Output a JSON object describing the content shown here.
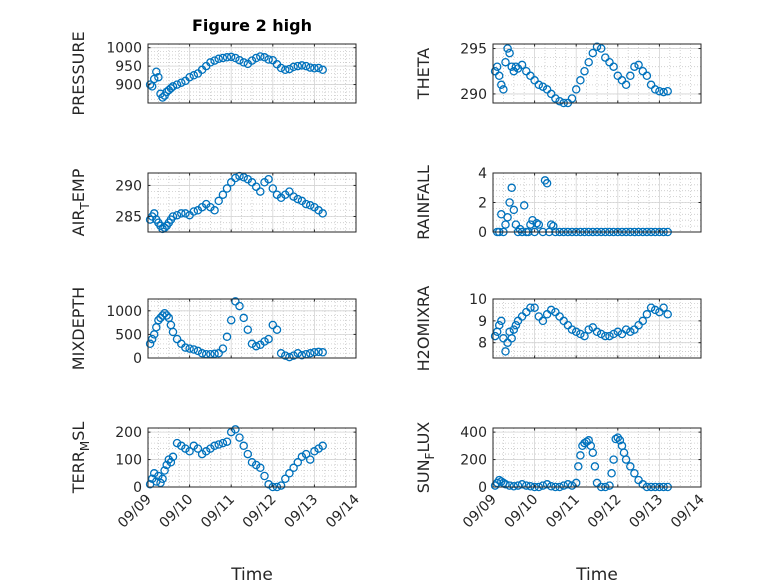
{
  "figure": {
    "title": "Figure 2 high",
    "marker_color": "#0072BD",
    "x_tick_labels": [
      "09/09",
      "09/10",
      "09/11",
      "09/12",
      "09/13",
      "09/14"
    ],
    "x_label": "Time"
  },
  "chart_data": [
    {
      "type": "scatter",
      "ylabel": "PRESSURE",
      "title": "Figure 2 high",
      "xlabel": "",
      "xlim": [
        0,
        5
      ],
      "ylim": [
        850,
        1010
      ],
      "yticks": [
        900,
        950,
        1000
      ],
      "grid": true,
      "minor_grid": true,
      "x": [
        0.05,
        0.1,
        0.15,
        0.2,
        0.25,
        0.3,
        0.35,
        0.4,
        0.45,
        0.5,
        0.55,
        0.6,
        0.7,
        0.8,
        0.9,
        1.0,
        1.1,
        1.2,
        1.3,
        1.4,
        1.5,
        1.6,
        1.7,
        1.8,
        1.9,
        2.0,
        2.1,
        2.2,
        2.3,
        2.4,
        2.5,
        2.6,
        2.7,
        2.8,
        2.9,
        3.0,
        3.1,
        3.2,
        3.3,
        3.4,
        3.5,
        3.6,
        3.7,
        3.8,
        3.9,
        4.0,
        4.1,
        4.2
      ],
      "y": [
        900,
        895,
        915,
        935,
        920,
        875,
        865,
        870,
        880,
        885,
        890,
        895,
        900,
        905,
        910,
        920,
        925,
        930,
        940,
        950,
        960,
        965,
        970,
        972,
        974,
        975,
        972,
        966,
        960,
        956,
        965,
        972,
        976,
        974,
        968,
        966,
        955,
        945,
        940,
        942,
        948,
        950,
        952,
        950,
        946,
        944,
        945,
        940
      ]
    },
    {
      "type": "scatter",
      "ylabel": "THETA",
      "xlabel": "",
      "xlim": [
        0,
        5
      ],
      "ylim": [
        289,
        295.5
      ],
      "yticks": [
        290,
        295
      ],
      "grid": true,
      "minor_grid": true,
      "x": [
        0.05,
        0.1,
        0.15,
        0.2,
        0.25,
        0.3,
        0.35,
        0.4,
        0.45,
        0.5,
        0.55,
        0.6,
        0.7,
        0.8,
        0.9,
        1.0,
        1.1,
        1.2,
        1.3,
        1.4,
        1.5,
        1.6,
        1.7,
        1.8,
        1.9,
        2.0,
        2.1,
        2.2,
        2.3,
        2.4,
        2.5,
        2.6,
        2.7,
        2.8,
        2.9,
        3.0,
        3.1,
        3.2,
        3.3,
        3.4,
        3.5,
        3.6,
        3.7,
        3.8,
        3.9,
        4.0,
        4.1,
        4.2
      ],
      "y": [
        292.5,
        293.0,
        292.0,
        291.0,
        290.5,
        293.5,
        295.0,
        294.5,
        293.0,
        292.5,
        293.0,
        292.8,
        293.2,
        292.5,
        292.0,
        291.5,
        291.0,
        290.8,
        290.5,
        290.0,
        289.5,
        289.2,
        289.0,
        289.0,
        289.5,
        290.5,
        291.5,
        292.5,
        293.5,
        294.5,
        295.2,
        295.0,
        294.0,
        293.5,
        293.0,
        292.0,
        291.5,
        291.0,
        292.0,
        293.0,
        293.2,
        292.5,
        292.0,
        291.0,
        290.5,
        290.3,
        290.2,
        290.3
      ]
    },
    {
      "type": "scatter",
      "ylabel": "AIR_TEMP",
      "xlabel": "",
      "xlim": [
        0,
        5
      ],
      "ylim": [
        282.5,
        292
      ],
      "yticks": [
        285,
        290
      ],
      "grid": true,
      "minor_grid": true,
      "x": [
        0.05,
        0.1,
        0.15,
        0.2,
        0.25,
        0.3,
        0.35,
        0.4,
        0.45,
        0.5,
        0.55,
        0.6,
        0.7,
        0.8,
        0.9,
        1.0,
        1.1,
        1.2,
        1.3,
        1.4,
        1.5,
        1.6,
        1.7,
        1.8,
        1.9,
        2.0,
        2.1,
        2.2,
        2.3,
        2.4,
        2.5,
        2.6,
        2.7,
        2.8,
        2.9,
        3.0,
        3.1,
        3.2,
        3.3,
        3.4,
        3.5,
        3.6,
        3.7,
        3.8,
        3.9,
        4.0,
        4.1,
        4.2
      ],
      "y": [
        284.5,
        285.0,
        285.5,
        284.5,
        284.0,
        283.5,
        283.0,
        283.2,
        283.5,
        284.0,
        284.5,
        285.0,
        285.2,
        285.5,
        285.5,
        285.2,
        285.8,
        286.0,
        286.5,
        287.0,
        286.5,
        286.0,
        287.5,
        288.5,
        289.5,
        290.5,
        291.2,
        291.5,
        291.3,
        291.0,
        290.5,
        289.8,
        289.0,
        290.5,
        291.0,
        289.5,
        288.5,
        288.0,
        288.5,
        289.0,
        288.2,
        287.8,
        287.5,
        287.0,
        286.8,
        286.5,
        286.0,
        285.5
      ]
    },
    {
      "type": "scatter",
      "ylabel": "RAINFALL",
      "xlabel": "",
      "xlim": [
        0,
        5
      ],
      "ylim": [
        0,
        4
      ],
      "yticks": [
        0,
        2,
        4
      ],
      "grid": true,
      "minor_grid": true,
      "x": [
        0.1,
        0.15,
        0.2,
        0.25,
        0.3,
        0.35,
        0.4,
        0.45,
        0.5,
        0.55,
        0.6,
        0.65,
        0.7,
        0.75,
        0.8,
        0.85,
        0.9,
        0.95,
        1.0,
        1.05,
        1.1,
        1.2,
        1.25,
        1.3,
        1.35,
        1.4,
        1.45,
        1.5,
        1.6,
        1.7,
        1.8,
        1.9,
        2.0,
        2.1,
        2.2,
        2.3,
        2.4,
        2.5,
        2.6,
        2.7,
        2.8,
        2.9,
        3.0,
        3.1,
        3.2,
        3.3,
        3.4,
        3.5,
        3.6,
        3.7,
        3.8,
        3.9,
        4.0,
        4.1,
        4.2
      ],
      "y": [
        0,
        0,
        1.2,
        0,
        0.5,
        1.0,
        2.0,
        3.0,
        1.5,
        0.5,
        0,
        0.2,
        0,
        1.8,
        0,
        0,
        0.5,
        0.8,
        0,
        0.6,
        0.5,
        0,
        3.5,
        3.3,
        0,
        0.5,
        0.4,
        0,
        0,
        0,
        0,
        0,
        0,
        0,
        0,
        0,
        0,
        0,
        0,
        0,
        0,
        0,
        0,
        0,
        0,
        0,
        0,
        0,
        0,
        0,
        0,
        0,
        0,
        0,
        0
      ]
    },
    {
      "type": "scatter",
      "ylabel": "MIXDEPTH",
      "xlabel": "",
      "xlim": [
        0,
        5
      ],
      "ylim": [
        0,
        1250
      ],
      "yticks": [
        0,
        500,
        1000
      ],
      "grid": true,
      "minor_grid": true,
      "x": [
        0.05,
        0.1,
        0.15,
        0.2,
        0.25,
        0.3,
        0.35,
        0.4,
        0.45,
        0.5,
        0.55,
        0.6,
        0.7,
        0.8,
        0.9,
        1.0,
        1.1,
        1.2,
        1.3,
        1.4,
        1.5,
        1.6,
        1.7,
        1.8,
        1.9,
        2.0,
        2.1,
        2.2,
        2.3,
        2.4,
        2.5,
        2.6,
        2.7,
        2.8,
        2.9,
        3.0,
        3.1,
        3.2,
        3.3,
        3.4,
        3.5,
        3.6,
        3.7,
        3.8,
        3.9,
        4.0,
        4.1,
        4.2
      ],
      "y": [
        300,
        400,
        500,
        650,
        800,
        850,
        900,
        950,
        900,
        850,
        700,
        550,
        400,
        300,
        220,
        200,
        180,
        150,
        100,
        80,
        80,
        90,
        100,
        200,
        450,
        800,
        1200,
        1100,
        850,
        600,
        300,
        250,
        280,
        350,
        400,
        700,
        600,
        100,
        50,
        20,
        50,
        100,
        60,
        80,
        100,
        120,
        130,
        120
      ]
    },
    {
      "type": "scatter",
      "ylabel": "H2OMIXRA",
      "xlabel": "",
      "xlim": [
        0,
        5
      ],
      "ylim": [
        7.3,
        10
      ],
      "yticks": [
        8,
        9,
        10
      ],
      "grid": true,
      "minor_grid": true,
      "x": [
        0.05,
        0.1,
        0.15,
        0.2,
        0.25,
        0.3,
        0.35,
        0.4,
        0.45,
        0.5,
        0.55,
        0.6,
        0.7,
        0.8,
        0.9,
        1.0,
        1.1,
        1.2,
        1.3,
        1.4,
        1.5,
        1.6,
        1.7,
        1.8,
        1.9,
        2.0,
        2.1,
        2.2,
        2.3,
        2.4,
        2.5,
        2.6,
        2.7,
        2.8,
        2.9,
        3.0,
        3.1,
        3.2,
        3.3,
        3.4,
        3.5,
        3.6,
        3.7,
        3.8,
        3.9,
        4.0,
        4.1,
        4.2
      ],
      "y": [
        8.3,
        8.5,
        8.8,
        9.0,
        8.2,
        7.6,
        8.0,
        8.5,
        8.2,
        8.6,
        8.8,
        9.0,
        9.2,
        9.4,
        9.6,
        9.6,
        9.2,
        9.0,
        9.3,
        9.5,
        9.4,
        9.2,
        9.0,
        8.8,
        8.6,
        8.5,
        8.4,
        8.3,
        8.6,
        8.7,
        8.5,
        8.4,
        8.3,
        8.3,
        8.4,
        8.5,
        8.4,
        8.6,
        8.5,
        8.6,
        8.8,
        9.0,
        9.3,
        9.6,
        9.5,
        9.4,
        9.6,
        9.3
      ]
    },
    {
      "type": "scatter",
      "ylabel": "TERR_MSL",
      "xlabel": "Time",
      "xlim": [
        0,
        5
      ],
      "ylim": [
        0,
        215
      ],
      "yticks": [
        0,
        100,
        200
      ],
      "grid": true,
      "minor_grid": true,
      "x": [
        0.05,
        0.1,
        0.15,
        0.2,
        0.25,
        0.3,
        0.35,
        0.4,
        0.45,
        0.5,
        0.55,
        0.6,
        0.7,
        0.8,
        0.9,
        1.0,
        1.1,
        1.2,
        1.3,
        1.4,
        1.5,
        1.6,
        1.7,
        1.8,
        1.9,
        2.0,
        2.1,
        2.2,
        2.3,
        2.4,
        2.5,
        2.6,
        2.7,
        2.8,
        2.9,
        3.0,
        3.1,
        3.2,
        3.3,
        3.4,
        3.5,
        3.6,
        3.7,
        3.8,
        3.9,
        4.0,
        4.1,
        4.2
      ],
      "y": [
        10,
        30,
        50,
        20,
        40,
        15,
        30,
        60,
        80,
        100,
        90,
        110,
        160,
        150,
        140,
        130,
        150,
        140,
        120,
        130,
        140,
        150,
        155,
        160,
        165,
        200,
        210,
        180,
        150,
        120,
        90,
        80,
        70,
        40,
        10,
        0,
        0,
        5,
        30,
        50,
        70,
        90,
        110,
        120,
        100,
        130,
        140,
        150
      ]
    },
    {
      "type": "scatter",
      "ylabel": "SUN_FLUX",
      "xlabel": "Time",
      "xlim": [
        0,
        5
      ],
      "ylim": [
        0,
        430
      ],
      "yticks": [
        0,
        200,
        400
      ],
      "grid": true,
      "minor_grid": true,
      "x": [
        0.05,
        0.1,
        0.15,
        0.2,
        0.25,
        0.3,
        0.4,
        0.5,
        0.6,
        0.7,
        0.8,
        0.9,
        1.0,
        1.1,
        1.2,
        1.3,
        1.4,
        1.5,
        1.6,
        1.7,
        1.8,
        1.9,
        2.0,
        2.05,
        2.1,
        2.15,
        2.2,
        2.25,
        2.3,
        2.35,
        2.4,
        2.45,
        2.5,
        2.6,
        2.7,
        2.8,
        2.85,
        2.9,
        2.95,
        3.0,
        3.05,
        3.1,
        3.15,
        3.2,
        3.3,
        3.4,
        3.5,
        3.6,
        3.7,
        3.8,
        3.9,
        4.0,
        4.1,
        4.2
      ],
      "y": [
        10,
        30,
        50,
        40,
        30,
        20,
        10,
        5,
        10,
        20,
        10,
        5,
        0,
        0,
        10,
        20,
        5,
        0,
        0,
        10,
        20,
        10,
        30,
        150,
        230,
        300,
        320,
        330,
        340,
        300,
        250,
        150,
        30,
        0,
        0,
        10,
        100,
        200,
        350,
        360,
        340,
        300,
        250,
        200,
        150,
        100,
        50,
        20,
        0,
        0,
        0,
        0,
        0,
        0
      ]
    }
  ]
}
